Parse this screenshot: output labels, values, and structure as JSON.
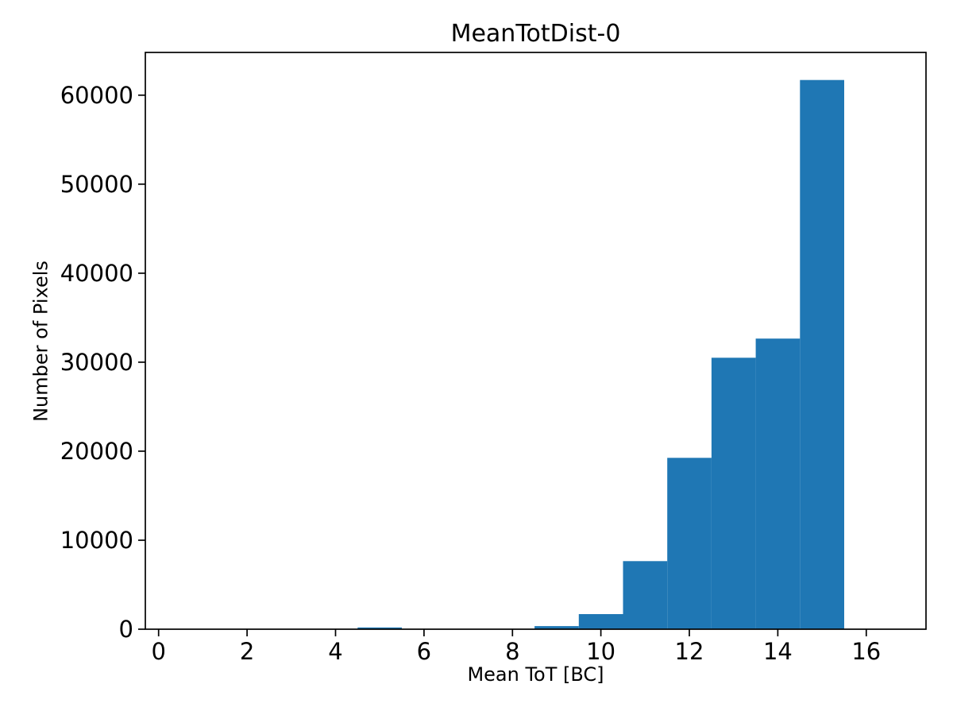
{
  "figure": {
    "title": "MeanTotDist-0",
    "xlabel": "Mean ToT [BC]",
    "ylabel": "Number of Pixels",
    "background_color": "#ffffff",
    "bar_color": "#1f77b4",
    "axis_color": "#000000",
    "text_color": "#000000"
  },
  "chart_data": {
    "type": "bar",
    "subtype": "histogram",
    "title": "MeanTotDist-0",
    "xlabel": "Mean ToT [BC]",
    "ylabel": "Number of Pixels",
    "bar_color": "#1f77b4",
    "bins": [
      {
        "x0": 4.5,
        "x1": 5.5,
        "count": 200
      },
      {
        "x0": 8.5,
        "x1": 9.5,
        "count": 350
      },
      {
        "x0": 9.5,
        "x1": 10.5,
        "count": 1700
      },
      {
        "x0": 10.5,
        "x1": 11.5,
        "count": 7650
      },
      {
        "x0": 11.5,
        "x1": 12.5,
        "count": 19250
      },
      {
        "x0": 12.5,
        "x1": 13.5,
        "count": 30500
      },
      {
        "x0": 13.5,
        "x1": 14.5,
        "count": 32650
      },
      {
        "x0": 14.5,
        "x1": 15.5,
        "count": 61700
      }
    ],
    "xticks": [
      0,
      2,
      4,
      6,
      8,
      10,
      12,
      14,
      16
    ],
    "yticks": [
      0,
      10000,
      20000,
      30000,
      40000,
      50000,
      60000
    ],
    "xlim": [
      -0.3,
      17.35
    ],
    "ylim": [
      0,
      64800
    ],
    "grid": false,
    "legend": null
  }
}
